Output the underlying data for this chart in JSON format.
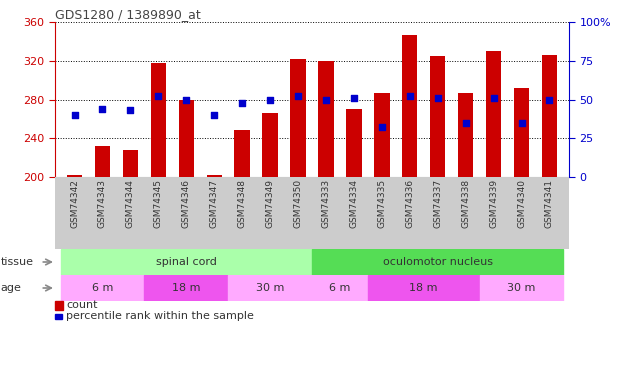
{
  "title": "GDS1280 / 1389890_at",
  "samples": [
    "GSM74342",
    "GSM74343",
    "GSM74344",
    "GSM74345",
    "GSM74346",
    "GSM74347",
    "GSM74348",
    "GSM74349",
    "GSM74350",
    "GSM74333",
    "GSM74334",
    "GSM74335",
    "GSM74336",
    "GSM74337",
    "GSM74338",
    "GSM74339",
    "GSM74340",
    "GSM74341"
  ],
  "counts": [
    202,
    232,
    228,
    318,
    279,
    202,
    249,
    266,
    322,
    320,
    270,
    287,
    347,
    325,
    287,
    330,
    292,
    326
  ],
  "percentile": [
    40,
    44,
    43,
    52,
    50,
    40,
    48,
    50,
    52,
    50,
    51,
    32,
    52,
    51,
    35,
    51,
    35,
    50
  ],
  "ymin": 200,
  "ymax": 360,
  "yticks": [
    200,
    240,
    280,
    320,
    360
  ],
  "y2min": 0,
  "y2max": 100,
  "y2ticks": [
    0,
    25,
    50,
    75,
    100
  ],
  "bar_color": "#cc0000",
  "dot_color": "#0000cc",
  "bar_bottom": 200,
  "tissue_groups": [
    {
      "label": "spinal cord",
      "start": 0,
      "end": 9,
      "color": "#aaffaa"
    },
    {
      "label": "oculomotor nucleus",
      "start": 9,
      "end": 18,
      "color": "#55dd55"
    }
  ],
  "age_groups": [
    {
      "label": "6 m",
      "start": 0,
      "end": 3,
      "color": "#ffaaff"
    },
    {
      "label": "18 m",
      "start": 3,
      "end": 6,
      "color": "#ee55ee"
    },
    {
      "label": "30 m",
      "start": 6,
      "end": 9,
      "color": "#ffaaff"
    },
    {
      "label": "6 m",
      "start": 9,
      "end": 11,
      "color": "#ffaaff"
    },
    {
      "label": "18 m",
      "start": 11,
      "end": 15,
      "color": "#ee55ee"
    },
    {
      "label": "30 m",
      "start": 15,
      "end": 18,
      "color": "#ffaaff"
    }
  ],
  "left_axis_color": "#cc0000",
  "right_axis_color": "#0000cc",
  "fig_width": 6.21,
  "fig_height": 3.75,
  "dpi": 100
}
